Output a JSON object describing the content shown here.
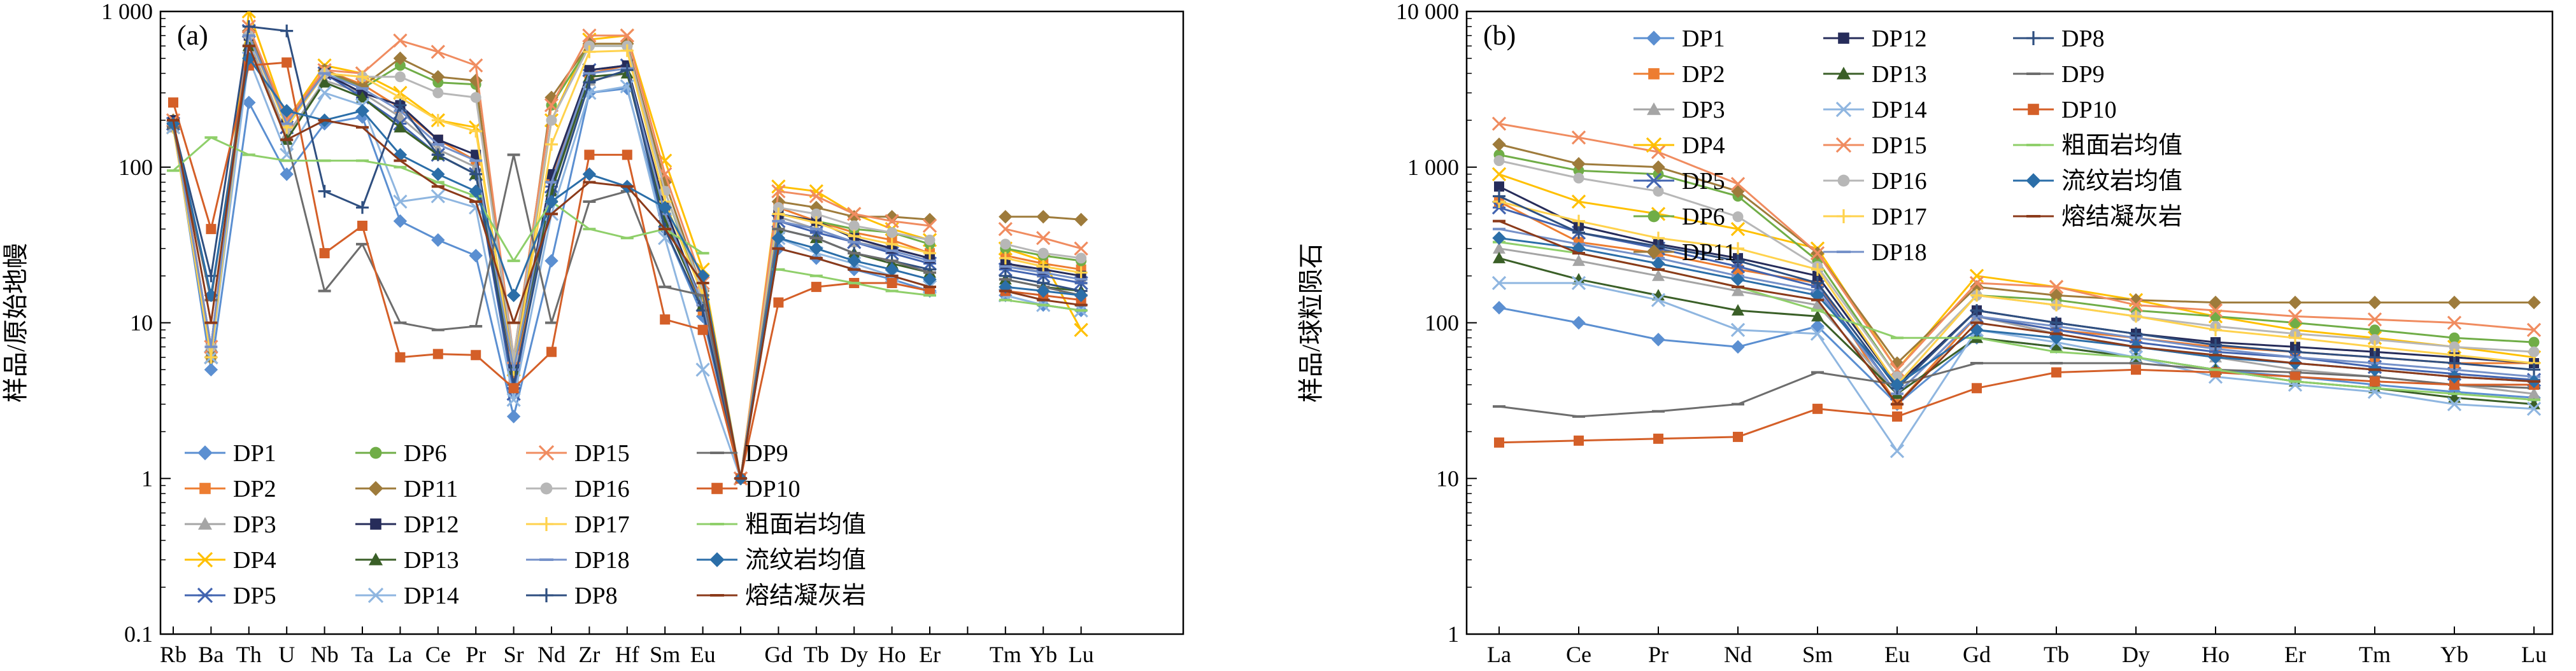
{
  "chart_data": [
    {
      "type": "line",
      "panel_label": "(a)",
      "ylabel": "样品/原始地幔",
      "yscale": "log",
      "ylim": [
        0.1,
        1000
      ],
      "y_ticks": [
        0.1,
        1,
        10,
        100,
        1000
      ],
      "y_tick_labels": [
        "0.1",
        "1",
        "10",
        "100",
        "1 000"
      ],
      "categories": [
        "Rb",
        "Ba",
        "Th",
        "U",
        "Nb",
        "Ta",
        "La",
        "Ce",
        "Pr",
        "Sr",
        "Nd",
        "Zr",
        "Hf",
        "Sm",
        "Eu",
        "",
        "Gd",
        "Tb",
        "Dy",
        "Ho",
        "Er",
        "",
        "Tm",
        "Yb",
        "Lu"
      ],
      "legend_position": "bottom-left",
      "series": [
        {
          "name": "DP1",
          "color": "#5b8fd1",
          "marker": "diamond",
          "values": [
            190,
            5,
            260,
            90,
            190,
            210,
            45,
            34,
            27,
            2.5,
            25,
            300,
            320,
            40,
            11,
            1,
            30,
            26,
            22,
            19,
            16,
            null,
            15,
            13,
            12
          ]
        },
        {
          "name": "DP2",
          "color": "#ed7d31",
          "marker": "square",
          "values": [
            200,
            6,
            700,
            200,
            420,
            340,
            240,
            150,
            110,
            4.2,
            85,
            400,
            450,
            50,
            12,
            1,
            55,
            45,
            38,
            34,
            28,
            null,
            27,
            24,
            22
          ]
        },
        {
          "name": "DP3",
          "color": "#a5a5a5",
          "marker": "triangle",
          "values": [
            180,
            7,
            650,
            160,
            360,
            300,
            210,
            130,
            100,
            6,
            70,
            360,
            400,
            45,
            14,
            1,
            48,
            40,
            33,
            30,
            26,
            null,
            24,
            21,
            19
          ]
        },
        {
          "name": "DP4",
          "color": "#ffc000",
          "marker": "x",
          "values": [
            180,
            6,
            1000,
            200,
            450,
            400,
            300,
            200,
            180,
            5,
            200,
            660,
            700,
            110,
            22,
            1,
            75,
            70,
            50,
            40,
            34,
            null,
            30,
            25,
            9
          ]
        },
        {
          "name": "DP5",
          "color": "#4264b0",
          "marker": "star",
          "values": [
            190,
            6,
            750,
            180,
            400,
            280,
            190,
            120,
            90,
            3.5,
            75,
            420,
            450,
            45,
            13,
            1,
            45,
            38,
            33,
            28,
            24,
            null,
            22,
            20,
            18
          ]
        },
        {
          "name": "DP6",
          "color": "#70ad47",
          "marker": "circle",
          "values": [
            200,
            6,
            720,
            190,
            420,
            320,
            450,
            350,
            340,
            6,
            250,
            600,
            600,
            70,
            15,
            1,
            50,
            45,
            40,
            38,
            32,
            null,
            30,
            27,
            25
          ]
        },
        {
          "name": "DP11",
          "color": "#9e7b3b",
          "marker": "diamond",
          "values": [
            200,
            6,
            750,
            190,
            420,
            330,
            500,
            380,
            360,
            5,
            280,
            620,
            620,
            80,
            16,
            1,
            60,
            55,
            48,
            48,
            46,
            null,
            48,
            48,
            46
          ]
        },
        {
          "name": "DP12",
          "color": "#262c5a",
          "marker": "square",
          "values": [
            200,
            7,
            700,
            190,
            400,
            300,
            250,
            150,
            120,
            5,
            90,
            420,
            450,
            55,
            13,
            1,
            50,
            45,
            35,
            30,
            26,
            null,
            24,
            22,
            20
          ]
        },
        {
          "name": "DP13",
          "color": "#3a5f27",
          "marker": "triangle",
          "values": [
            190,
            7,
            600,
            150,
            350,
            280,
            180,
            120,
            90,
            5,
            70,
            380,
            400,
            45,
            13,
            1,
            40,
            35,
            28,
            24,
            21,
            null,
            19,
            17,
            16
          ]
        },
        {
          "name": "DP14",
          "color": "#8fb6e0",
          "marker": "x",
          "values": [
            180,
            6,
            500,
            120,
            300,
            250,
            60,
            65,
            55,
            3.2,
            50,
            300,
            330,
            35,
            5,
            1,
            35,
            28,
            24,
            20,
            17,
            null,
            15,
            13,
            12
          ]
        },
        {
          "name": "DP15",
          "color": "#f08c60",
          "marker": "x",
          "values": [
            200,
            7,
            800,
            200,
            420,
            400,
            650,
            550,
            450,
            6,
            250,
            700,
            700,
            90,
            18,
            1,
            70,
            65,
            50,
            45,
            42,
            null,
            40,
            35,
            30
          ]
        },
        {
          "name": "DP16",
          "color": "#b7b7b7",
          "marker": "circle",
          "values": [
            190,
            7,
            700,
            180,
            400,
            380,
            380,
            300,
            280,
            6,
            200,
            600,
            600,
            70,
            16,
            1,
            55,
            50,
            42,
            38,
            34,
            null,
            32,
            28,
            26
          ]
        },
        {
          "name": "DP17",
          "color": "#ffd24d",
          "marker": "plus",
          "values": [
            180,
            6,
            700,
            180,
            400,
            380,
            280,
            200,
            170,
            5,
            140,
            550,
            560,
            60,
            15,
            1,
            50,
            44,
            36,
            32,
            28,
            null,
            26,
            23,
            21
          ]
        },
        {
          "name": "DP18",
          "color": "#7591c9",
          "marker": "dash",
          "values": [
            190,
            7,
            700,
            190,
            400,
            320,
            230,
            140,
            110,
            5,
            80,
            400,
            430,
            50,
            13,
            1,
            45,
            40,
            33,
            29,
            25,
            null,
            23,
            21,
            19
          ]
        },
        {
          "name": "DP8",
          "color": "#2f4f80",
          "marker": "plus",
          "values": [
            190,
            20,
            800,
            750,
            70,
            55,
            250,
            120,
            90,
            4,
            60,
            350,
            420,
            40,
            12,
            1,
            40,
            35,
            28,
            25,
            22,
            null,
            20,
            18,
            16
          ]
        },
        {
          "name": "DP9",
          "color": "#6d6d6d",
          "marker": "dash",
          "values": [
            180,
            14,
            600,
            150,
            16,
            32,
            10,
            9,
            9.5,
            120,
            10,
            60,
            70,
            17,
            15,
            1,
            40,
            35,
            28,
            25,
            21,
            null,
            19,
            17,
            15
          ]
        },
        {
          "name": "DP10",
          "color": "#d45f28",
          "marker": "square",
          "values": [
            260,
            40,
            450,
            470,
            28,
            42,
            6,
            6.3,
            6.2,
            3.8,
            6.5,
            120,
            120,
            10.5,
            9,
            1,
            13.5,
            17,
            18,
            18,
            16,
            null,
            16,
            15,
            14
          ]
        },
        {
          "name": "粗面岩均值",
          "color": "#8fcf6a",
          "marker": "dash",
          "values": [
            95,
            155,
            120,
            110,
            110,
            110,
            100,
            80,
            65,
            25,
            60,
            40,
            35,
            40,
            28,
            null,
            22,
            20,
            18,
            16,
            15,
            null,
            14,
            13,
            12
          ]
        },
        {
          "name": "流纹岩均值",
          "color": "#2b6ea8",
          "marker": "diamond",
          "values": [
            190,
            15,
            500,
            230,
            200,
            230,
            120,
            90,
            70,
            15,
            60,
            90,
            75,
            55,
            20,
            1,
            35,
            30,
            25,
            22,
            19,
            null,
            17,
            16,
            15
          ]
        },
        {
          "name": "熔结凝灰岩",
          "color": "#8b3a1a",
          "marker": "dash",
          "values": [
            200,
            10,
            600,
            150,
            200,
            180,
            110,
            75,
            60,
            10,
            50,
            80,
            75,
            40,
            18,
            1,
            30,
            26,
            22,
            20,
            17,
            null,
            16,
            14,
            13
          ]
        }
      ]
    },
    {
      "type": "line",
      "panel_label": "(b)",
      "ylabel": "样品/球粒陨石",
      "yscale": "log",
      "ylim": [
        1,
        10000
      ],
      "y_ticks": [
        1,
        10,
        100,
        1000,
        10000
      ],
      "y_tick_labels": [
        "1",
        "10",
        "100",
        "1 000",
        "10 000"
      ],
      "categories": [
        "La",
        "Ce",
        "Pr",
        "Nd",
        "Sm",
        "Eu",
        "Gd",
        "Tb",
        "Dy",
        "Ho",
        "Er",
        "Tm",
        "Yb",
        "Lu"
      ],
      "legend_position": "top-right",
      "series": [
        {
          "name": "DP1",
          "color": "#5b8fd1",
          "marker": "diamond",
          "values": [
            125,
            100,
            78,
            70,
            95,
            30,
            80,
            70,
            60,
            50,
            45,
            40,
            36,
            33
          ]
        },
        {
          "name": "DP2",
          "color": "#ed7d31",
          "marker": "square",
          "values": [
            600,
            330,
            280,
            220,
            180,
            30,
            110,
            90,
            80,
            70,
            65,
            60,
            55,
            55
          ]
        },
        {
          "name": "DP3",
          "color": "#a5a5a5",
          "marker": "triangle",
          "values": [
            300,
            250,
            200,
            160,
            130,
            35,
            110,
            85,
            70,
            60,
            50,
            45,
            40,
            35
          ]
        },
        {
          "name": "DP4",
          "color": "#ffc000",
          "marker": "x",
          "values": [
            900,
            600,
            500,
            400,
            300,
            50,
            200,
            170,
            140,
            110,
            90,
            80,
            70,
            60
          ]
        },
        {
          "name": "DP5",
          "color": "#4264b0",
          "marker": "star",
          "values": [
            550,
            380,
            300,
            230,
            170,
            35,
            110,
            90,
            75,
            65,
            60,
            52,
            47,
            43
          ]
        },
        {
          "name": "DP6",
          "color": "#70ad47",
          "marker": "circle",
          "values": [
            1200,
            950,
            900,
            650,
            250,
            45,
            150,
            140,
            120,
            110,
            100,
            90,
            80,
            75
          ]
        },
        {
          "name": "DP11",
          "color": "#9e7b3b",
          "marker": "diamond",
          "values": [
            1400,
            1050,
            1000,
            700,
            280,
            55,
            170,
            150,
            140,
            135,
            135,
            135,
            135,
            135
          ]
        },
        {
          "name": "DP12",
          "color": "#262c5a",
          "marker": "square",
          "values": [
            750,
            420,
            320,
            260,
            200,
            40,
            120,
            100,
            85,
            75,
            70,
            65,
            60,
            55
          ]
        },
        {
          "name": "DP13",
          "color": "#3a5f27",
          "marker": "triangle",
          "values": [
            260,
            190,
            150,
            120,
            110,
            35,
            80,
            70,
            60,
            50,
            42,
            38,
            33,
            30
          ]
        },
        {
          "name": "DP14",
          "color": "#8fb6e0",
          "marker": "x",
          "values": [
            180,
            180,
            140,
            90,
            85,
            15,
            90,
            75,
            60,
            45,
            40,
            36,
            30,
            28
          ]
        },
        {
          "name": "DP15",
          "color": "#f08c60",
          "marker": "x",
          "values": [
            1900,
            1550,
            1250,
            780,
            280,
            50,
            180,
            170,
            130,
            120,
            110,
            105,
            100,
            90
          ]
        },
        {
          "name": "DP16",
          "color": "#b7b7b7",
          "marker": "circle",
          "values": [
            1100,
            850,
            700,
            480,
            230,
            45,
            150,
            130,
            110,
            95,
            85,
            78,
            70,
            65
          ]
        },
        {
          "name": "DP17",
          "color": "#ffd24d",
          "marker": "plus",
          "values": [
            600,
            450,
            350,
            300,
            220,
            40,
            150,
            130,
            110,
            90,
            80,
            70,
            62,
            55
          ]
        },
        {
          "name": "DP18",
          "color": "#7591c9",
          "marker": "dash",
          "values": [
            400,
            320,
            260,
            200,
            160,
            35,
            110,
            95,
            80,
            68,
            60,
            55,
            50,
            45
          ]
        },
        {
          "name": "DP8",
          "color": "#2f4f80",
          "marker": "plus",
          "values": [
            650,
            380,
            310,
            250,
            180,
            38,
            120,
            100,
            85,
            72,
            65,
            60,
            55,
            50
          ]
        },
        {
          "name": "DP9",
          "color": "#6d6d6d",
          "marker": "dash",
          "values": [
            29,
            25,
            27,
            30,
            48,
            40,
            55,
            55,
            55,
            50,
            48,
            45,
            40,
            38
          ]
        },
        {
          "name": "DP10",
          "color": "#d45f28",
          "marker": "square",
          "values": [
            17,
            17.5,
            18,
            18.5,
            28,
            25,
            38,
            48,
            50,
            48,
            45,
            42,
            40,
            40
          ]
        },
        {
          "name": "粗面岩均值",
          "color": "#8fcf6a",
          "marker": "dash",
          "values": [
            330,
            280,
            220,
            170,
            120,
            80,
            80,
            65,
            60,
            50,
            42,
            38,
            35,
            32
          ]
        },
        {
          "name": "流纹岩均值",
          "color": "#2b6ea8",
          "marker": "diamond",
          "values": [
            350,
            300,
            240,
            190,
            150,
            40,
            90,
            80,
            70,
            60,
            55,
            50,
            45,
            42
          ]
        },
        {
          "name": "熔结凝灰岩",
          "color": "#8b3a1a",
          "marker": "dash",
          "values": [
            450,
            280,
            220,
            170,
            140,
            30,
            100,
            85,
            70,
            62,
            55,
            50,
            45,
            42
          ]
        }
      ]
    }
  ]
}
